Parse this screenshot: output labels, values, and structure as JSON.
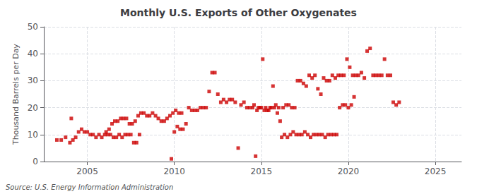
{
  "chart_data": {
    "type": "scatter",
    "title": "Monthly U.S. Exports of Other Oxygenates",
    "ylabel": "Thousand Barrels per Day",
    "annotation": "Source: U.S. Energy Information Administration",
    "color": "#cc0000",
    "marker": "square",
    "grid": true,
    "xlim": [
      2002.5,
      2026.5
    ],
    "ylim": [
      0,
      50
    ],
    "xticks": [
      2005,
      2010,
      2015,
      2020,
      2025
    ],
    "yticks": [
      0,
      10,
      20,
      30,
      40,
      50
    ],
    "x": [
      2003.25,
      2003.5,
      2003.75,
      2004.0,
      2004.17,
      2004.33,
      2004.5,
      2004.67,
      2004.83,
      2005.0,
      2005.17,
      2005.33,
      2005.5,
      2005.67,
      2005.83,
      2006.0,
      2006.17,
      2006.33,
      2006.5,
      2006.67,
      2006.83,
      2007.0,
      2007.17,
      2007.33,
      2007.5,
      2007.67,
      2007.83,
      2008.0,
      2004.08,
      2006.08,
      2006.25,
      2006.42,
      2006.58,
      2006.75,
      2006.92,
      2007.08,
      2007.25,
      2007.42,
      2007.58,
      2007.75,
      2007.92,
      2008.08,
      2008.25,
      2008.42,
      2008.58,
      2008.75,
      2008.92,
      2009.08,
      2009.25,
      2009.42,
      2009.58,
      2009.75,
      2009.92,
      2010.08,
      2010.25,
      2010.42,
      2009.83,
      2010.0,
      2010.17,
      2010.33,
      2010.5,
      2010.67,
      2010.83,
      2011.0,
      2011.17,
      2011.33,
      2011.5,
      2011.67,
      2011.83,
      2012.0,
      2012.17,
      2012.33,
      2012.5,
      2012.67,
      2012.83,
      2013.0,
      2013.17,
      2013.33,
      2013.5,
      2013.67,
      2013.83,
      2014.0,
      2014.17,
      2014.33,
      2014.5,
      2014.67,
      2014.83,
      2015.0,
      2015.17,
      2015.33,
      2015.5,
      2015.67,
      2015.83,
      2016.0,
      2016.17,
      2016.33,
      2016.5,
      2016.67,
      2016.83,
      2017.0,
      2017.17,
      2017.33,
      2017.5,
      2017.67,
      2017.83,
      2018.0,
      2018.17,
      2018.33,
      2018.5,
      2018.67,
      2018.83,
      2019.0,
      2019.17,
      2019.33,
      2019.5,
      2019.67,
      2019.83,
      2020.0,
      2020.17,
      2020.33,
      2014.58,
      2014.75,
      2014.92,
      2015.08,
      2015.25,
      2015.42,
      2015.58,
      2015.75,
      2015.92,
      2016.08,
      2016.25,
      2016.42,
      2016.58,
      2016.75,
      2016.92,
      2017.08,
      2017.25,
      2017.42,
      2017.58,
      2017.75,
      2017.92,
      2018.08,
      2018.25,
      2018.42,
      2018.58,
      2018.75,
      2018.92,
      2019.08,
      2019.25,
      2019.42,
      2019.58,
      2019.75,
      2019.92,
      2020.08,
      2020.25,
      2020.42,
      2020.58,
      2020.75,
      2020.92,
      2021.08,
      2021.25,
      2021.42,
      2021.58,
      2021.75,
      2021.92,
      2022.08,
      2022.25,
      2022.42,
      2022.58,
      2022.75,
      2022.92
    ],
    "values": [
      8,
      8,
      9,
      7,
      8,
      9,
      11,
      12,
      11,
      11,
      10,
      10,
      9,
      10,
      9,
      10,
      10,
      10,
      9,
      9,
      10,
      9,
      10,
      10,
      10,
      7,
      7,
      10,
      16,
      11,
      12,
      14,
      15,
      15,
      16,
      16,
      16,
      14,
      14,
      15,
      17,
      18,
      18,
      17,
      17,
      18,
      17,
      16,
      15,
      15,
      16,
      17,
      18,
      19,
      18,
      18,
      1,
      11,
      13,
      12,
      12,
      14,
      20,
      19,
      19,
      19,
      20,
      20,
      20,
      26,
      33,
      33,
      25,
      22,
      23,
      22,
      23,
      23,
      22,
      5,
      21,
      22,
      20,
      20,
      20,
      2,
      20,
      20,
      19,
      19,
      20,
      28,
      21,
      20,
      9,
      10,
      9,
      10,
      11,
      10,
      10,
      10,
      11,
      10,
      9,
      10,
      10,
      10,
      10,
      9,
      10,
      10,
      10,
      10,
      20,
      21,
      21,
      20,
      21,
      24,
      21,
      19,
      20,
      38,
      20,
      19,
      20,
      20,
      18,
      15,
      20,
      21,
      21,
      20,
      20,
      30,
      30,
      29,
      28,
      32,
      31,
      32,
      27,
      25,
      31,
      30,
      30,
      32,
      31,
      32,
      32,
      32,
      38,
      35,
      32,
      32,
      32,
      33,
      31,
      41,
      42,
      32,
      32,
      32,
      32,
      38,
      32,
      32,
      22,
      21,
      22
    ]
  }
}
